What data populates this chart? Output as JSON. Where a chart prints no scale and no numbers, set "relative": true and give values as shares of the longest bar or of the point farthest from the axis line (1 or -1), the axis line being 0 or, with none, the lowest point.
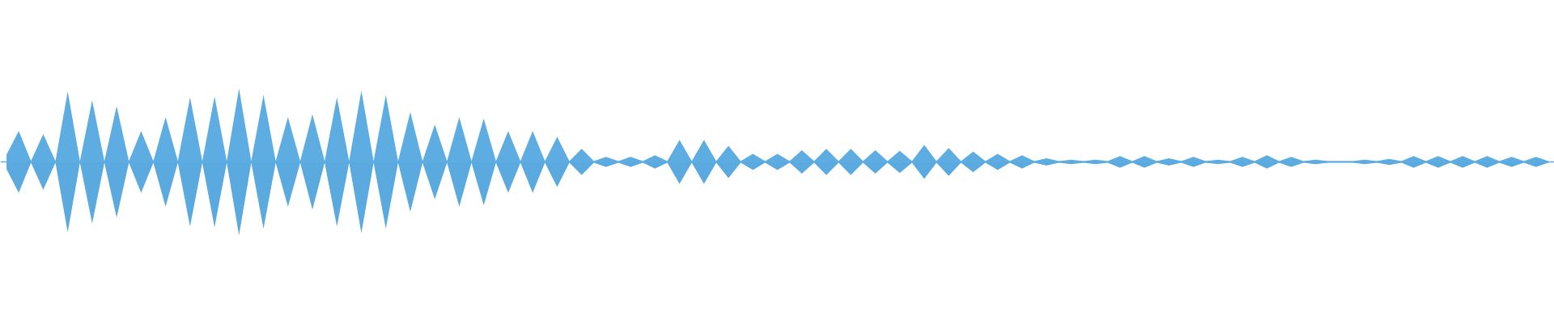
{
  "chart_data": {
    "type": "area",
    "relative": true,
    "grid": false,
    "tick_labels": false,
    "ref_lines": [
      {
        "axis": "y",
        "value": 0,
        "color": "#5dade2"
      }
    ],
    "categories": [
      null,
      null,
      null,
      null,
      null,
      null,
      null,
      null,
      null,
      null,
      null,
      null,
      null,
      null,
      null,
      null,
      null,
      null,
      null,
      null,
      null,
      null,
      null,
      null,
      null,
      null,
      null,
      null,
      null,
      null,
      null,
      null,
      null,
      null,
      null,
      null,
      null,
      null,
      null,
      null,
      null,
      null,
      null,
      null,
      null,
      null,
      null,
      null,
      null,
      null,
      null,
      null,
      null,
      null,
      null,
      null,
      null,
      null,
      null,
      null,
      null,
      null,
      null,
      null,
      null,
      null,
      null,
      null,
      null,
      null,
      null,
      null,
      null,
      null,
      null,
      null,
      null,
      null,
      null,
      null,
      null,
      null,
      null,
      null,
      null,
      null,
      null,
      null,
      null,
      null,
      null,
      null,
      null,
      null,
      null,
      null,
      null,
      null,
      null,
      null,
      null,
      null,
      null,
      null,
      null,
      null,
      null,
      null,
      null,
      null,
      null,
      null,
      null,
      null,
      null,
      null,
      null,
      null,
      null,
      null,
      null,
      null,
      null,
      null,
      null,
      null,
      null
    ],
    "series": [
      {
        "color": "#5dade2",
        "values": [
          0.1,
          0.42,
          0.01,
          0.38,
          0.01,
          0.96,
          0.01,
          0.84,
          0.01,
          0.76,
          0.01,
          0.42,
          0.01,
          0.61,
          0.01,
          0.88,
          0.01,
          0.89,
          0.01,
          1,
          0.01,
          0.91,
          0.01,
          0.61,
          0.01,
          0.65,
          0.01,
          0.88,
          0.01,
          0.97,
          0.01,
          0.91,
          0.01,
          0.68,
          0.01,
          0.51,
          0.01,
          0.61,
          0.01,
          0.59,
          0.01,
          0.42,
          0.01,
          0.42,
          0.01,
          0.34,
          0.01,
          0.18,
          0.01,
          0.07,
          0.01,
          0.07,
          0.01,
          0.09,
          0.01,
          0.3,
          0.01,
          0.3,
          0.01,
          0.22,
          0.01,
          0.11,
          0.01,
          0.11,
          0.01,
          0.16,
          0.01,
          0.18,
          0.01,
          0.18,
          0.01,
          0.16,
          0.01,
          0.15,
          0.01,
          0.23,
          0.01,
          0.19,
          0.01,
          0.14,
          0.01,
          0.11,
          0.01,
          0.09,
          0.01,
          0.05,
          0.01,
          0.03,
          0.01,
          0.03,
          0.01,
          0.08,
          0.01,
          0.08,
          0.01,
          0.05,
          0.01,
          0.07,
          0.01,
          0.03,
          0.01,
          0.07,
          0.01,
          0.09,
          0.01,
          0.07,
          0.01,
          0.03,
          0.01,
          0.01,
          0.01,
          0.03,
          0.01,
          0.04,
          0.01,
          0.08,
          0.01,
          0.08,
          0.01,
          0.08,
          0.01,
          0.08,
          0.01,
          0.07,
          0.01,
          0.07,
          0.01
        ]
      },
      {
        "color": "#5aaadf",
        "values": [
          -0.1,
          -0.42,
          -0.01,
          -0.38,
          -0.01,
          -0.96,
          -0.01,
          -0.84,
          -0.01,
          -0.76,
          -0.01,
          -0.42,
          -0.01,
          -0.61,
          -0.01,
          -0.88,
          -0.01,
          -0.89,
          -0.01,
          -1,
          -0.01,
          -0.91,
          -0.01,
          -0.61,
          -0.01,
          -0.65,
          -0.01,
          -0.88,
          -0.01,
          -0.97,
          -0.01,
          -0.91,
          -0.01,
          -0.68,
          -0.01,
          -0.51,
          -0.01,
          -0.61,
          -0.01,
          -0.59,
          -0.01,
          -0.42,
          -0.01,
          -0.42,
          -0.01,
          -0.34,
          -0.01,
          -0.18,
          -0.01,
          -0.07,
          -0.01,
          -0.07,
          -0.01,
          -0.09,
          -0.01,
          -0.3,
          -0.01,
          -0.3,
          -0.01,
          -0.22,
          -0.01,
          -0.11,
          -0.01,
          -0.11,
          -0.01,
          -0.16,
          -0.01,
          -0.18,
          -0.01,
          -0.18,
          -0.01,
          -0.16,
          -0.01,
          -0.15,
          -0.01,
          -0.23,
          -0.01,
          -0.19,
          -0.01,
          -0.14,
          -0.01,
          -0.11,
          -0.01,
          -0.09,
          -0.01,
          -0.05,
          -0.01,
          -0.03,
          -0.01,
          -0.03,
          -0.01,
          -0.08,
          -0.01,
          -0.08,
          -0.01,
          -0.05,
          -0.01,
          -0.07,
          -0.01,
          -0.03,
          -0.01,
          -0.07,
          -0.01,
          -0.09,
          -0.01,
          -0.07,
          -0.01,
          -0.03,
          -0.01,
          -0.01,
          -0.01,
          -0.03,
          -0.01,
          -0.04,
          -0.01,
          -0.08,
          -0.01,
          -0.08,
          -0.01,
          -0.08,
          -0.01,
          -0.08,
          -0.01,
          -0.07,
          -0.01,
          -0.07,
          -0.01
        ]
      }
    ]
  }
}
